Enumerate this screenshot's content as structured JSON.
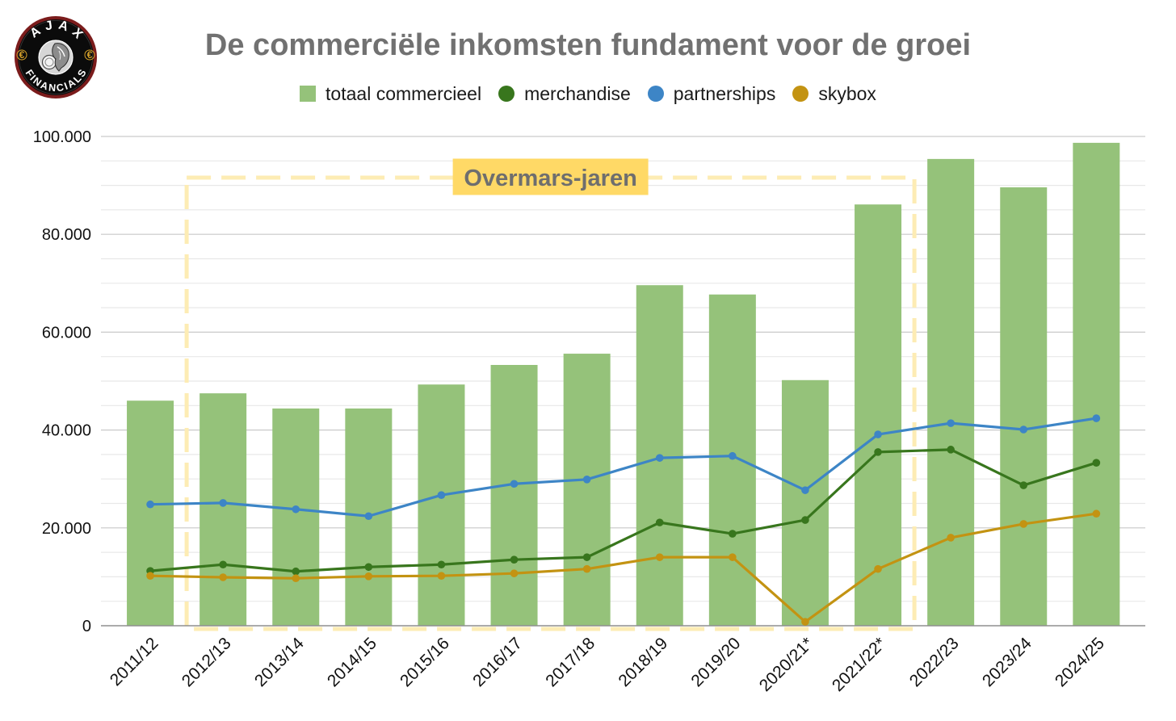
{
  "logo": {
    "top_text": "AJAX",
    "bottom_text": "FINANCIALS",
    "currency_symbol": "€",
    "emblem_icon": "ajax-head-coins-icon",
    "colors": {
      "ring": "#7b1c1c",
      "background": "#0b0b0b",
      "text": "#ffffff",
      "symbol": "#d6a22a"
    }
  },
  "chart_data": {
    "type": "bar",
    "title": "De commerciële inkomsten fundament voor de groei",
    "title_color": "#717171",
    "xlabel": "",
    "ylabel": "",
    "categories": [
      "2011/12",
      "2012/13",
      "2013/14",
      "2014/15",
      "2015/16",
      "2016/17",
      "2017/18",
      "2018/19",
      "2019/20",
      "2020/21*",
      "2021/22*",
      "2022/23",
      "2023/24",
      "2024/25"
    ],
    "ylim": [
      0,
      100000
    ],
    "y_ticks": [
      0,
      20000,
      40000,
      60000,
      80000,
      100000
    ],
    "y_tick_labels": [
      "0",
      "20.000",
      "40.000",
      "60.000",
      "80.000",
      "100.000"
    ],
    "y_major_step": 20000,
    "y_minor_step": 5000,
    "grid": true,
    "legend": "top",
    "series": [
      {
        "name": "totaal commercieel",
        "type": "bar",
        "color": "#95c27a",
        "values": [
          46000,
          47500,
          44400,
          44400,
          49300,
          53300,
          55600,
          69600,
          67700,
          50200,
          86100,
          95400,
          89600,
          98700
        ]
      },
      {
        "name": "merchandise",
        "type": "line",
        "color": "#38761d",
        "values": [
          11200,
          12500,
          11100,
          12000,
          12500,
          13500,
          14000,
          21100,
          18800,
          21600,
          35500,
          36000,
          28700,
          33300
        ]
      },
      {
        "name": "partnerships",
        "type": "line",
        "color": "#3d85c6",
        "values": [
          24800,
          25100,
          23800,
          22400,
          26700,
          29000,
          29900,
          34300,
          34700,
          27700,
          39100,
          41400,
          40100,
          42400
        ]
      },
      {
        "name": "skybox",
        "type": "line",
        "color": "#c39312",
        "values": [
          10200,
          9900,
          9700,
          10100,
          10200,
          10700,
          11600,
          14000,
          14000,
          800,
          11600,
          18000,
          20800,
          22900
        ]
      }
    ],
    "annotations": [
      {
        "label": "Overmars-jaren",
        "from_category": "2012/13",
        "to_category": "2021/22*",
        "fill_color": "#ffd966",
        "border_color": "#fdecb4",
        "text_color": "#6e6e6e"
      }
    ]
  }
}
